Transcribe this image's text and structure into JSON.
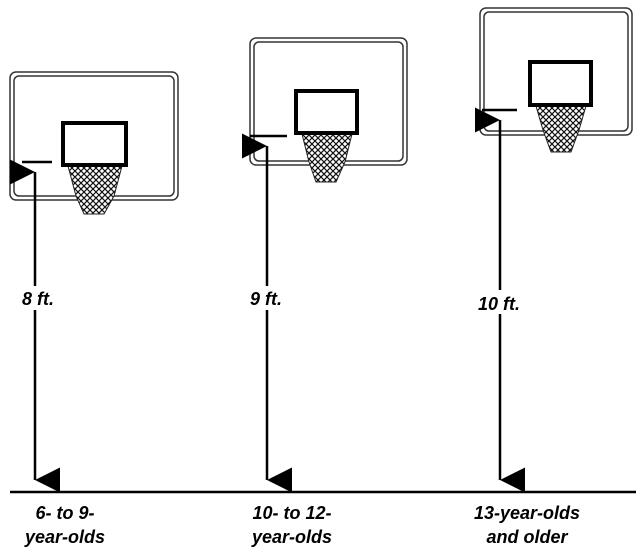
{
  "hoops": [
    {
      "height": "8 ft.",
      "age": [
        "6- to 9-",
        "year-olds"
      ]
    },
    {
      "height": "9 ft.",
      "age": [
        "10- to 12-",
        "year-olds"
      ]
    },
    {
      "height": "10 ft.",
      "age": [
        "13-year-olds",
        "and older"
      ]
    }
  ]
}
